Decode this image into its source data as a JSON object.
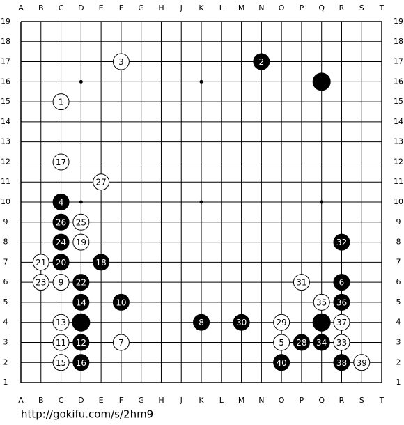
{
  "board": {
    "columns": [
      "A",
      "B",
      "C",
      "D",
      "E",
      "F",
      "G",
      "H",
      "J",
      "K",
      "L",
      "M",
      "N",
      "O",
      "P",
      "Q",
      "R",
      "S",
      "T"
    ],
    "rows": [
      19,
      18,
      17,
      16,
      15,
      14,
      13,
      12,
      11,
      10,
      9,
      8,
      7,
      6,
      5,
      4,
      3,
      2,
      1
    ],
    "stones": [
      {
        "col": "Q",
        "row": 16,
        "color": "black"
      },
      {
        "col": "D",
        "row": 4,
        "color": "black"
      },
      {
        "col": "Q",
        "row": 4,
        "color": "black"
      },
      {
        "col": "C",
        "row": 15,
        "color": "white",
        "number": 1
      },
      {
        "col": "N",
        "row": 17,
        "color": "black",
        "number": 2
      },
      {
        "col": "F",
        "row": 17,
        "color": "white",
        "number": 3
      },
      {
        "col": "C",
        "row": 10,
        "color": "black",
        "number": 4
      },
      {
        "col": "O",
        "row": 3,
        "color": "white",
        "number": 5
      },
      {
        "col": "R",
        "row": 6,
        "color": "black",
        "number": 6
      },
      {
        "col": "F",
        "row": 3,
        "color": "white",
        "number": 7
      },
      {
        "col": "K",
        "row": 4,
        "color": "black",
        "number": 8
      },
      {
        "col": "C",
        "row": 6,
        "color": "white",
        "number": 9
      },
      {
        "col": "F",
        "row": 5,
        "color": "black",
        "number": 10
      },
      {
        "col": "C",
        "row": 3,
        "color": "white",
        "number": 11
      },
      {
        "col": "D",
        "row": 3,
        "color": "black",
        "number": 12
      },
      {
        "col": "C",
        "row": 4,
        "color": "white",
        "number": 13
      },
      {
        "col": "D",
        "row": 5,
        "color": "black",
        "number": 14
      },
      {
        "col": "C",
        "row": 2,
        "color": "white",
        "number": 15
      },
      {
        "col": "D",
        "row": 2,
        "color": "black",
        "number": 16
      },
      {
        "col": "C",
        "row": 12,
        "color": "white",
        "number": 17
      },
      {
        "col": "E",
        "row": 7,
        "color": "black",
        "number": 18
      },
      {
        "col": "D",
        "row": 8,
        "color": "white",
        "number": 19
      },
      {
        "col": "C",
        "row": 7,
        "color": "black",
        "number": 20
      },
      {
        "col": "B",
        "row": 7,
        "color": "white",
        "number": 21
      },
      {
        "col": "D",
        "row": 6,
        "color": "black",
        "number": 22
      },
      {
        "col": "B",
        "row": 6,
        "color": "white",
        "number": 23
      },
      {
        "col": "C",
        "row": 8,
        "color": "black",
        "number": 24
      },
      {
        "col": "D",
        "row": 9,
        "color": "white",
        "number": 25
      },
      {
        "col": "C",
        "row": 9,
        "color": "black",
        "number": 26
      },
      {
        "col": "E",
        "row": 11,
        "color": "white",
        "number": 27
      },
      {
        "col": "P",
        "row": 3,
        "color": "black",
        "number": 28
      },
      {
        "col": "O",
        "row": 4,
        "color": "white",
        "number": 29
      },
      {
        "col": "M",
        "row": 4,
        "color": "black",
        "number": 30
      },
      {
        "col": "P",
        "row": 6,
        "color": "white",
        "number": 31
      },
      {
        "col": "R",
        "row": 8,
        "color": "black",
        "number": 32
      },
      {
        "col": "R",
        "row": 3,
        "color": "white",
        "number": 33
      },
      {
        "col": "Q",
        "row": 3,
        "color": "black",
        "number": 34
      },
      {
        "col": "Q",
        "row": 5,
        "color": "white",
        "number": 35
      },
      {
        "col": "R",
        "row": 5,
        "color": "black",
        "number": 36
      },
      {
        "col": "R",
        "row": 4,
        "color": "white",
        "number": 37
      },
      {
        "col": "R",
        "row": 2,
        "color": "black",
        "number": 38
      },
      {
        "col": "S",
        "row": 2,
        "color": "white",
        "number": 39
      },
      {
        "col": "O",
        "row": 2,
        "color": "black",
        "number": 40
      }
    ]
  },
  "footer": {
    "url": "http://gokifu.com/s/2hm9"
  }
}
